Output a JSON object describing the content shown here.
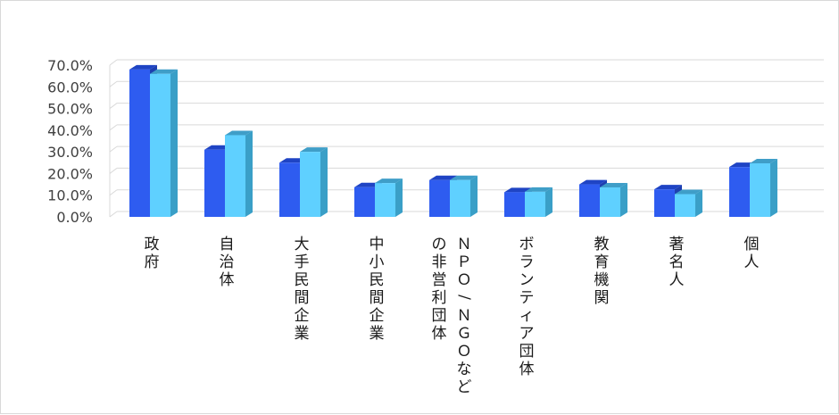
{
  "chart_data": {
    "type": "bar",
    "categories": [
      "政府",
      "自治体",
      "大手民間企業",
      "中小民間企業",
      "ＮＰＯ/ＮＧＯなどの非営利団体",
      "ボランティア団体",
      "教育機関",
      "著名人",
      "個人"
    ],
    "category_lines": [
      [
        "政府"
      ],
      [
        "自治体"
      ],
      [
        "大手民間企業"
      ],
      [
        "中小民間企業"
      ],
      [
        "ＮＰＯ/ＮＧＯなど",
        "の非営利団体"
      ],
      [
        "ボランティア団体"
      ],
      [
        "教育機関"
      ],
      [
        "著名人"
      ],
      [
        "個人"
      ]
    ],
    "series": [
      {
        "values": [
          68.0,
          31.0,
          25.0,
          13.7,
          17.0,
          11.4,
          15.0,
          12.7,
          23.0
        ],
        "color": "#2e5cf0",
        "side_color": "#1d3fb0",
        "top_color": "#1f44c4"
      },
      {
        "values": [
          66.0,
          37.7,
          30.0,
          15.6,
          17.0,
          11.6,
          13.6,
          10.5,
          24.7
        ],
        "color": "#5fd0ff",
        "side_color": "#3a9fc7",
        "top_color": "#3f9ec8"
      }
    ],
    "ylim": [
      0,
      70
    ],
    "yticks": [
      0,
      10,
      20,
      30,
      40,
      50,
      60,
      70
    ],
    "ytick_labels": [
      "0.0%",
      "10.0%",
      "20.0%",
      "30.0%",
      "40.0%",
      "50.0%",
      "60.0%",
      "70.0%"
    ],
    "grid": true,
    "legend": "none",
    "title": "",
    "xlabel": "",
    "ylabel": ""
  }
}
